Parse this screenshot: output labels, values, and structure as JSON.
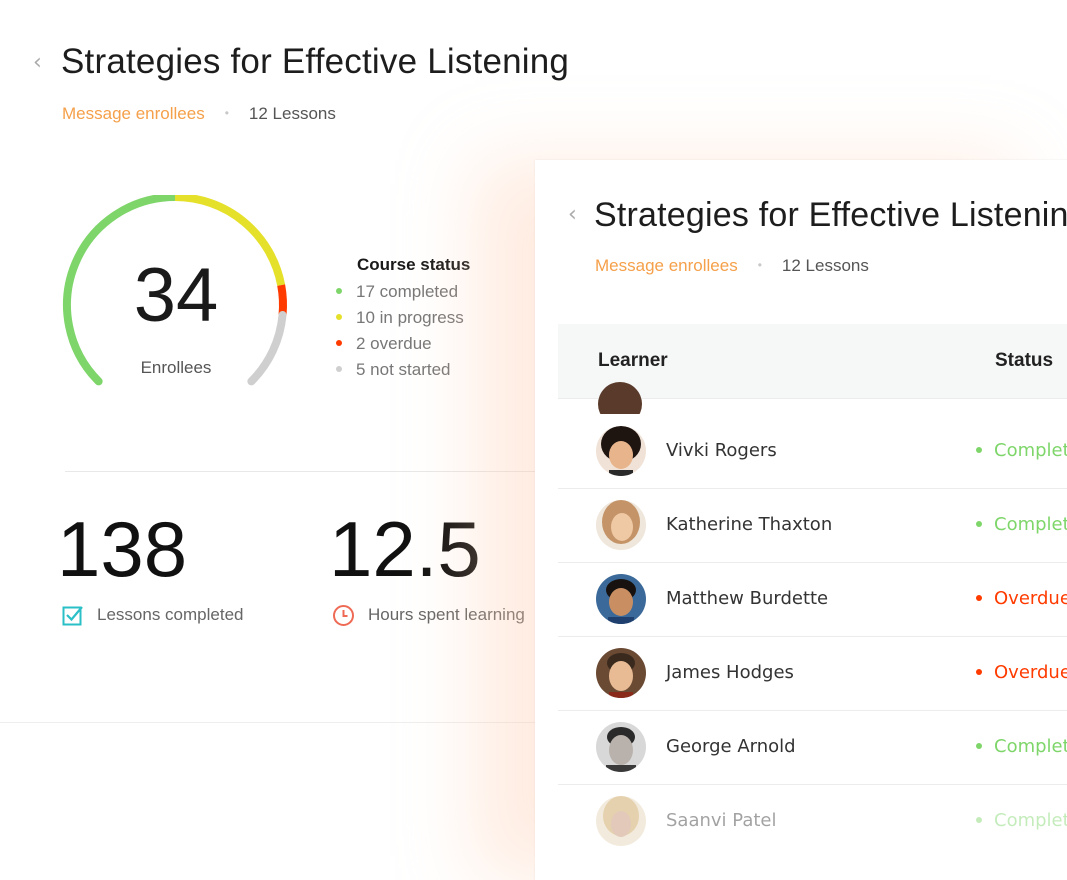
{
  "colors": {
    "accent": "#f5a04a",
    "completed": "#7ed66a",
    "in_progress": "#e5e02a",
    "overdue": "#ff3b00",
    "not_started": "#cfcfcf"
  },
  "back_card": {
    "title": "Strategies for Effective Listening",
    "message_link": "Message enrollees",
    "separator": "•",
    "lessons_count": "12 Lessons",
    "enrollees": {
      "value": "34",
      "label": "Enrollees",
      "segments": [
        {
          "status": "completed",
          "count": 17
        },
        {
          "status": "in_progress",
          "count": 10
        },
        {
          "status": "overdue",
          "count": 2
        },
        {
          "status": "not_started",
          "count": 5
        }
      ]
    },
    "course_status": {
      "title": "Course status",
      "items": [
        {
          "label": "17 completed",
          "color": "#7ed66a"
        },
        {
          "label": "10 in progress",
          "color": "#e5e02a"
        },
        {
          "label": "2 overdue",
          "color": "#ff3b00"
        },
        {
          "label": "5 not started",
          "color": "#cfcfcf"
        }
      ]
    },
    "stats": [
      {
        "value": "138",
        "label": "Lessons completed",
        "icon": "checkbox-icon"
      },
      {
        "value": "12.5",
        "label": "Hours spent learning",
        "icon": "clock-icon"
      }
    ]
  },
  "front_card": {
    "title": "Strategies for Effective Listening",
    "message_link": "Message enrollees",
    "separator": "•",
    "lessons_count": "12 Lessons",
    "columns": {
      "learner": "Learner",
      "status": "Status"
    },
    "rows": [
      {
        "name": "Vivki Rogers",
        "status": "Completed",
        "state": "completed"
      },
      {
        "name": "Katherine Thaxton",
        "status": "Completed",
        "state": "completed"
      },
      {
        "name": "Matthew Burdette",
        "status": "Overdue",
        "state": "overdue"
      },
      {
        "name": "James Hodges",
        "status": "Overdue",
        "state": "overdue"
      },
      {
        "name": "George Arnold",
        "status": "Completed",
        "state": "completed"
      },
      {
        "name": "Saanvi Patel",
        "status": "Completed",
        "state": "completed"
      }
    ]
  }
}
